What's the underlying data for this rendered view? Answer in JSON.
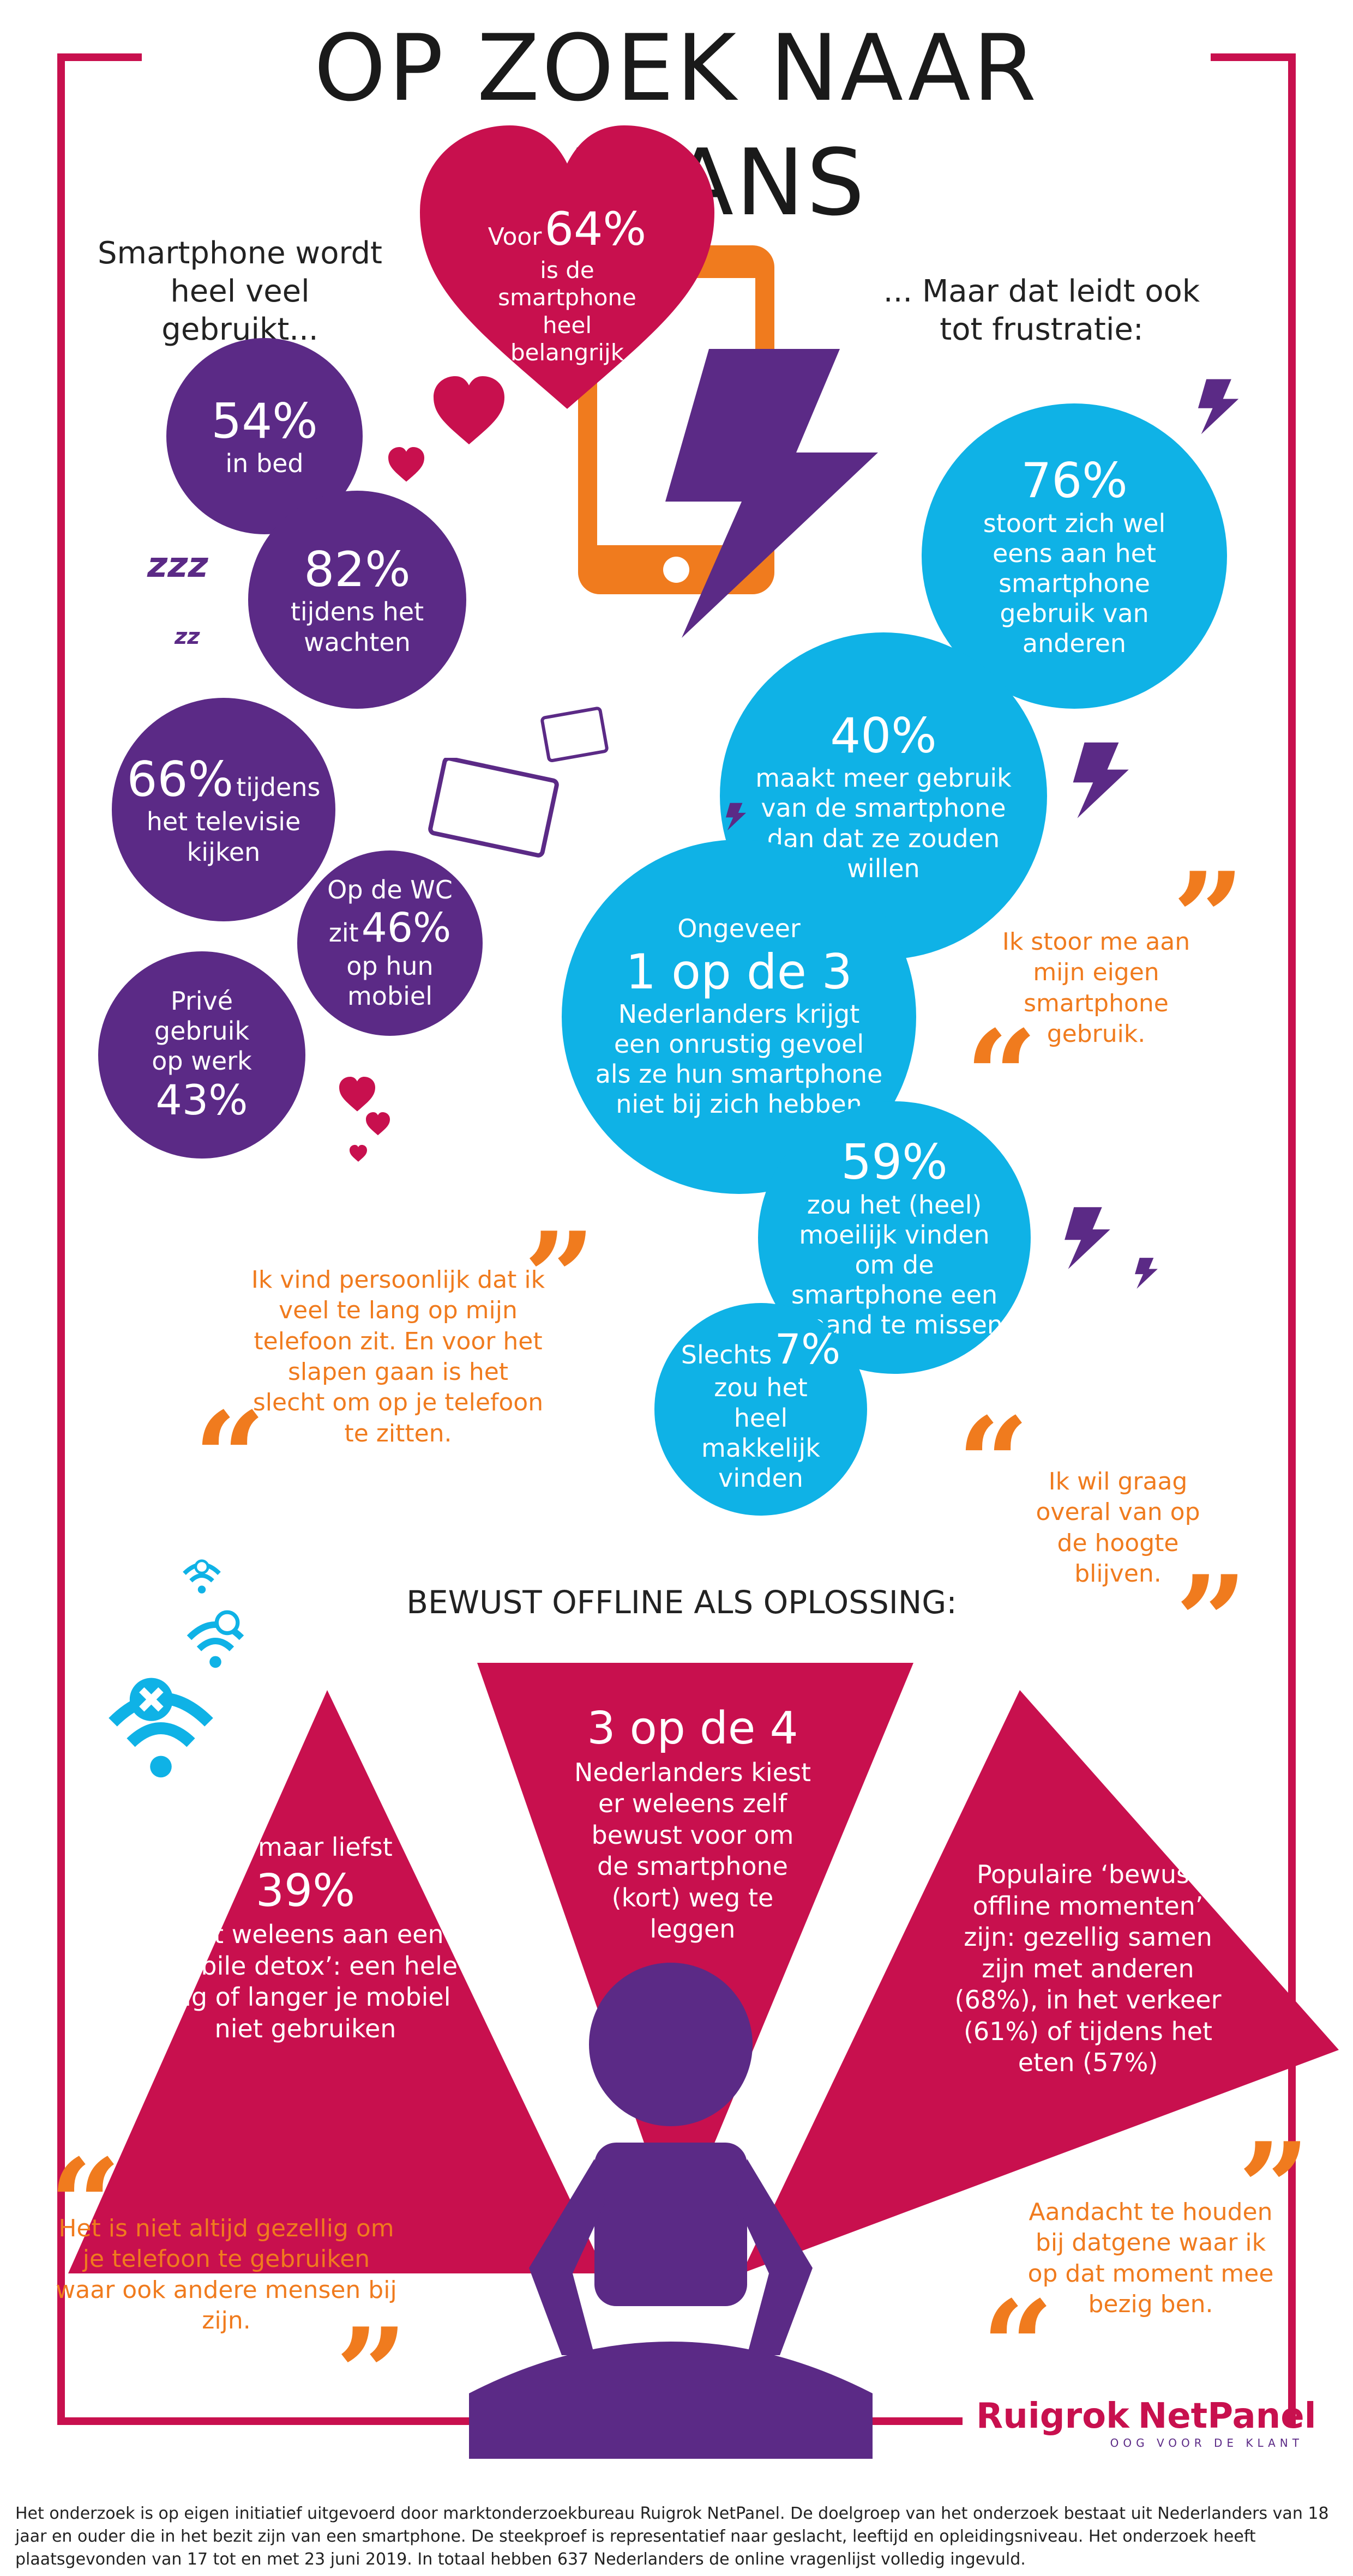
{
  "title": "OP ZOEK NAAR BALANS",
  "colors": {
    "frame": "#c8104e",
    "purple": "#5b2a86",
    "blue": "#0fb2e6",
    "orange": "#f07b1e",
    "magenta": "#c8104e"
  },
  "left_header": "Smartphone wordt heel veel gebruikt...",
  "right_header": "... Maar dat leidt ook tot frustratie:",
  "heart": {
    "prefix": "Voor",
    "value": "64%",
    "text": "is de smartphone heel belangrijk"
  },
  "purple_circles": {
    "bed": {
      "value": "54%",
      "text": "in bed"
    },
    "waiting": {
      "value": "82%",
      "text": "tijdens het wachten"
    },
    "tv": {
      "value": "66%",
      "suffix": "tijdens",
      "text": "het televisie kijken"
    },
    "wc": {
      "top": "Op de WC",
      "pre": "zit",
      "value": "46%",
      "text": "op hun mobiel"
    },
    "work": {
      "text": "Privé gebruik op werk",
      "value": "43%"
    }
  },
  "blue_circles": {
    "annoyed": {
      "value": "76%",
      "text": "stoort zich wel eens aan het smartphone gebruik van anderen"
    },
    "more_use": {
      "value": "40%",
      "text": "maakt meer gebruik van de smartphone dan dat ze zouden willen"
    },
    "restless": {
      "top": "Ongeveer",
      "value": "1 op de 3",
      "text": "Nederlanders krijgt een onrustig gevoel als ze hun smartphone niet bij zich hebben"
    },
    "difficult": {
      "value": "59%",
      "text": "zou het (heel) moeilijk vinden om de smartphone een maand te missen"
    },
    "easy": {
      "pre": "Slechts",
      "value": "7%",
      "text": "zou het heel makkelijk vinden"
    }
  },
  "quotes": {
    "own_use": "Ik stoor me aan mijn eigen smartphone gebruik.",
    "too_long": "Ik vind persoonlijk dat ik veel te lang op mijn telefoon zit. En voor het slapen gaan is het slecht om op je telefoon te zitten.",
    "stay_informed": "Ik wil graag overal van op de hoogte blijven.",
    "not_cozy": "Het is niet altijd gezellig om je telefoon te gebruiken waar ook andere mensen bij zijn.",
    "attention": "Aandacht te houden bij datgene waar ik op dat moment mee bezig ben."
  },
  "offline_header": "BEWUST OFFLINE ALS OPLOSSING:",
  "center_triangle": {
    "value": "3 op de 4",
    "text": "Nederlanders kiest er weleens zelf bewust voor om de smartphone (kort) weg te leggen"
  },
  "left_triangle": {
    "top": "En maar liefst",
    "value": "39%",
    "text": "doet weleens aan een ‘mobile detox’: een hele dag of langer je mobiel niet gebruiken"
  },
  "right_triangle": {
    "text": "Populaire ‘bewust offline momenten’ zijn: gezellig samen zijn met anderen (68%), in het verkeer (61%) of tijdens het eten (57%)"
  },
  "logo": {
    "brand_left": "Ruigrok",
    "brand_right": "NetPanel",
    "tagline": "OOG VOOR DE KLANT"
  },
  "footer": "Het onderzoek is op eigen initiatief uitgevoerd door marktonderzoekbureau Ruigrok NetPanel. De doelgroep van het onderzoek bestaat uit Nederlanders van 18 jaar en ouder die in het bezit zijn van een smartphone. De steekproef is representatief naar geslacht, leeftijd en opleidingsniveau. Het onderzoek heeft plaatsgevonden van 17 tot en met 23 juni 2019. In totaal hebben 637 Nederlanders de online vragenlijst volledig ingevuld.",
  "icons": [
    "heart-icon",
    "lightning-icon",
    "smartphone-icon",
    "sleep-icon",
    "tv-icon",
    "tablet-icon",
    "no-wifi-icon",
    "quote-icon",
    "meditating-person-icon"
  ]
}
